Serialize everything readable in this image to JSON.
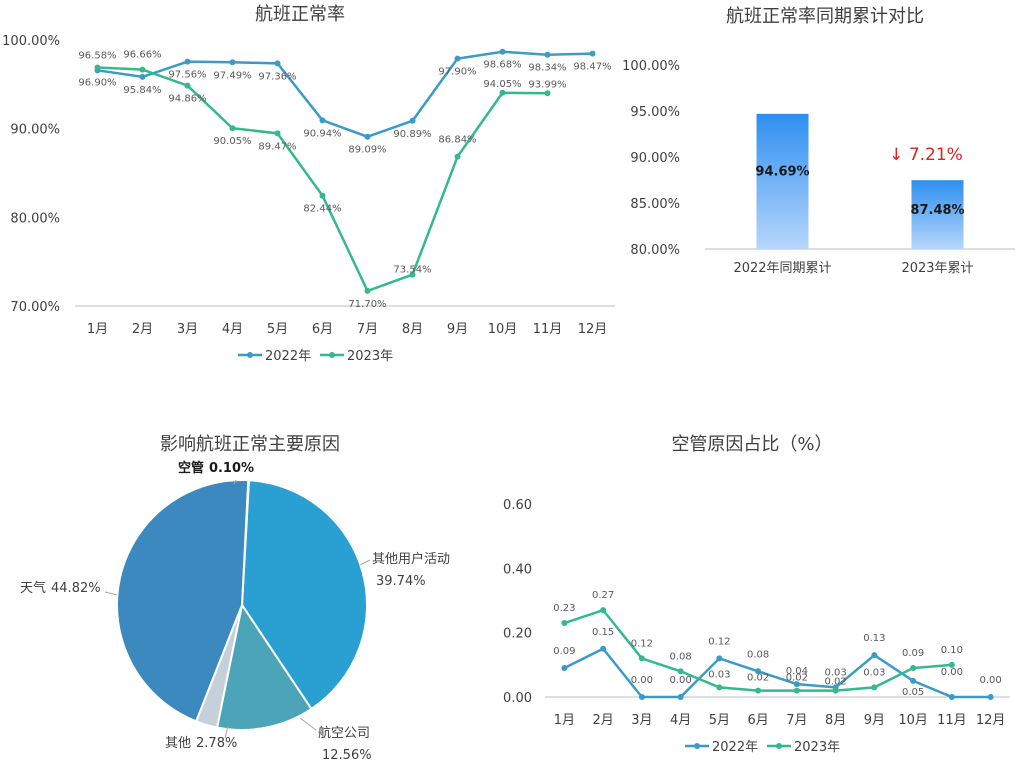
{
  "chart_data": [
    {
      "type": "line",
      "title": "航班正常率",
      "categories": [
        "1月",
        "2月",
        "3月",
        "4月",
        "5月",
        "6月",
        "7月",
        "8月",
        "9月",
        "10月",
        "11月",
        "12月"
      ],
      "ylim": [
        70,
        100
      ],
      "yticks": [
        "70.00%",
        "80.00%",
        "90.00%",
        "100.00%"
      ],
      "ytick_values": [
        70,
        80,
        90,
        100
      ],
      "grid": false,
      "legend": "bottom",
      "series": [
        {
          "name": "2022年",
          "color": "#3a9bc9",
          "values": [
            96.58,
            95.84,
            97.56,
            97.49,
            97.36,
            90.94,
            89.09,
            90.89,
            97.9,
            98.68,
            98.34,
            98.47
          ],
          "labels": [
            "96.58%",
            "95.84%",
            "97.56%",
            "97.49%",
            "97.36%",
            "90.94%",
            "89.09%",
            "90.89%",
            "97.90%",
            "98.68%",
            "98.34%",
            "98.47%"
          ]
        },
        {
          "name": "2023年",
          "color": "#34b98a",
          "values": [
            96.9,
            96.66,
            94.86,
            90.05,
            89.47,
            82.44,
            71.7,
            73.54,
            86.84,
            94.05,
            93.99,
            null
          ],
          "labels": [
            "96.90%",
            "96.66%",
            "94.86%",
            "90.05%",
            "89.47%",
            "82.44%",
            "71.70%",
            "73.54%",
            "86.84%",
            "94.05%",
            "93.99%",
            ""
          ]
        }
      ]
    },
    {
      "type": "bar",
      "title": "航班正常率同期累计对比",
      "categories": [
        "2022年同期累计",
        "2023年累计"
      ],
      "values": [
        94.69,
        87.48
      ],
      "labels": [
        "94.69%",
        "87.48%"
      ],
      "ylim": [
        80,
        100
      ],
      "yticks": [
        "80.00%",
        "85.00%",
        "90.00%",
        "95.00%",
        "100.00%"
      ],
      "ytick_values": [
        80,
        85,
        90,
        95,
        100
      ],
      "grid": false,
      "annotation": "↓ 7.21%",
      "bar_color_top": "#2e8ff0",
      "bar_color_bottom": "#b7d6fb",
      "annotation_color": "#e02020"
    },
    {
      "type": "pie",
      "title": "影响航班正常主要原因",
      "slices": [
        {
          "name": "空管",
          "value": 0.1,
          "label": "0.10%",
          "color": "#dfe6ee"
        },
        {
          "name": "其他用户活动",
          "value": 39.74,
          "label": "39.74%",
          "color": "#2aa0d2"
        },
        {
          "name": "航空公司",
          "value": 12.56,
          "label": "12.56%",
          "color": "#4ba4b8"
        },
        {
          "name": "其他",
          "value": 2.78,
          "label": "2.78%",
          "color": "#c6d0db"
        },
        {
          "name": "天气",
          "value": 44.82,
          "label": "44.82%",
          "color": "#3c89bf"
        }
      ]
    },
    {
      "type": "line",
      "title": "空管原因占比（%）",
      "categories": [
        "1月",
        "2月",
        "3月",
        "4月",
        "5月",
        "6月",
        "7月",
        "8月",
        "9月",
        "10月",
        "11月",
        "12月"
      ],
      "ylim": [
        0,
        0.6
      ],
      "yticks": [
        "0.00",
        "0.20",
        "0.40",
        "0.60"
      ],
      "ytick_values": [
        0,
        0.2,
        0.4,
        0.6
      ],
      "grid": false,
      "legend": "bottom",
      "series": [
        {
          "name": "2022年",
          "color": "#3a9bc9",
          "values": [
            0.09,
            0.15,
            0.0,
            0.0,
            0.12,
            0.08,
            0.04,
            0.03,
            0.13,
            0.05,
            0.0,
            0.0
          ],
          "labels": [
            "0.09",
            "0.15",
            "0.00",
            "0.00",
            "0.12",
            "0.08",
            "0.04",
            "0.03",
            "0.13",
            "0.05",
            "0.00",
            "0.00"
          ]
        },
        {
          "name": "2023年",
          "color": "#34b98a",
          "values": [
            0.23,
            0.27,
            0.12,
            0.08,
            0.03,
            0.02,
            0.02,
            0.02,
            0.03,
            0.09,
            0.1,
            null
          ],
          "labels": [
            "0.23",
            "0.27",
            "0.12",
            "0.08",
            "0.03",
            "0.02",
            "0.02",
            "0.02",
            "0.03",
            "0.09",
            "0.10",
            ""
          ]
        }
      ]
    }
  ]
}
